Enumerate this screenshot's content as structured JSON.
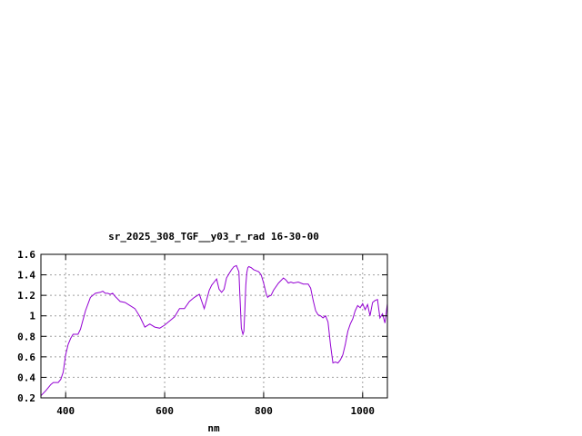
{
  "chart_data": {
    "type": "line",
    "title": "sr_2025_308_TGF__y03_r_rad 16-30-00",
    "xlabel": "nm",
    "ylabel": "",
    "xlim": [
      350,
      1050
    ],
    "ylim": [
      0.2,
      1.6
    ],
    "x_ticks": [
      400,
      600,
      800,
      1000
    ],
    "x_tick_labels": [
      "400",
      "600",
      "800",
      "1000"
    ],
    "y_ticks": [
      0.2,
      0.4,
      0.6,
      0.8,
      1.0,
      1.2,
      1.4,
      1.6
    ],
    "y_tick_labels": [
      "0.2",
      "0.4",
      "0.6",
      "0.8",
      "1",
      "1.2",
      "1.4",
      "1.6"
    ],
    "grid": true,
    "legend": "none",
    "series_color": "#9400d3",
    "series": [
      {
        "x": [
          350,
          360,
          370,
          375,
          380,
          385,
          390,
          395,
          400,
          405,
          410,
          415,
          420,
          425,
          430,
          440,
          450,
          460,
          470,
          475,
          480,
          485,
          490,
          495,
          500,
          510,
          520,
          530,
          540,
          550,
          560,
          570,
          580,
          590,
          600,
          610,
          620,
          630,
          640,
          650,
          660,
          670,
          680,
          690,
          695,
          700,
          705,
          710,
          715,
          720,
          725,
          730,
          735,
          740,
          745,
          750,
          752,
          755,
          758,
          760,
          762,
          764,
          766,
          768,
          770,
          775,
          780,
          785,
          790,
          795,
          800,
          805,
          808,
          810,
          815,
          820,
          830,
          840,
          845,
          850,
          855,
          860,
          870,
          880,
          890,
          895,
          900,
          905,
          910,
          915,
          920,
          925,
          930,
          935,
          940,
          945,
          950,
          955,
          960,
          965,
          970,
          975,
          980,
          985,
          990,
          995,
          1000,
          1005,
          1010,
          1015,
          1020,
          1025,
          1030,
          1035,
          1040,
          1045,
          1050
        ],
        "y": [
          0.22,
          0.27,
          0.33,
          0.35,
          0.35,
          0.35,
          0.38,
          0.45,
          0.62,
          0.72,
          0.78,
          0.82,
          0.82,
          0.82,
          0.87,
          1.05,
          1.18,
          1.22,
          1.23,
          1.24,
          1.22,
          1.22,
          1.21,
          1.22,
          1.19,
          1.14,
          1.13,
          1.1,
          1.07,
          0.99,
          0.89,
          0.92,
          0.89,
          0.88,
          0.91,
          0.95,
          0.99,
          1.07,
          1.07,
          1.14,
          1.18,
          1.21,
          1.07,
          1.25,
          1.3,
          1.33,
          1.36,
          1.26,
          1.23,
          1.26,
          1.37,
          1.41,
          1.45,
          1.48,
          1.49,
          1.43,
          1.2,
          0.88,
          0.82,
          0.85,
          1.05,
          1.3,
          1.42,
          1.47,
          1.48,
          1.47,
          1.45,
          1.44,
          1.43,
          1.4,
          1.32,
          1.22,
          1.18,
          1.19,
          1.2,
          1.25,
          1.32,
          1.37,
          1.35,
          1.32,
          1.33,
          1.32,
          1.33,
          1.31,
          1.31,
          1.27,
          1.15,
          1.05,
          1.01,
          1.0,
          0.98,
          1.0,
          0.94,
          0.72,
          0.54,
          0.55,
          0.54,
          0.57,
          0.62,
          0.72,
          0.85,
          0.92,
          0.97,
          1.05,
          1.1,
          1.08,
          1.12,
          1.06,
          1.11,
          1.0,
          1.13,
          1.15,
          1.16,
          0.98,
          1.02,
          0.93,
          1.12
        ]
      }
    ]
  }
}
